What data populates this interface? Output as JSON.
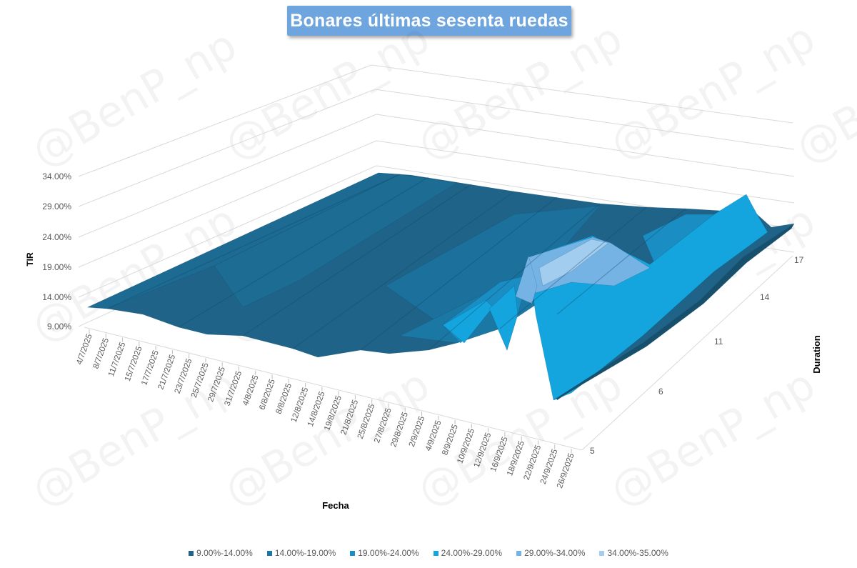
{
  "title": "Bonares últimas sesenta ruedas",
  "watermark_text": "@BenP_np",
  "chart_data": {
    "type": "surface",
    "title": "Bonares últimas sesenta ruedas",
    "xlabel": "Fecha",
    "ylabel": "TIR",
    "zlabel": "Duration",
    "y_ticks": [
      "9.00%",
      "14.00%",
      "19.00%",
      "24.00%",
      "29.00%",
      "34.00%"
    ],
    "ylim": [
      9,
      35
    ],
    "z_ticks": [
      "5",
      "6",
      "11",
      "14",
      "17"
    ],
    "x_ticks": [
      "4/7/2025",
      "8/7/2025",
      "11/7/2025",
      "15/7/2025",
      "17/7/2025",
      "21/7/2025",
      "23/7/2025",
      "25/7/2025",
      "29/7/2025",
      "31/7/2025",
      "4/8/2025",
      "6/8/2025",
      "8/8/2025",
      "12/8/2025",
      "14/8/2025",
      "19/8/2025",
      "21/8/2025",
      "25/8/2025",
      "27/8/2025",
      "29/8/2025",
      "2/9/2025",
      "4/9/2025",
      "8/9/2025",
      "10/9/2025",
      "12/9/2025",
      "16/9/2025",
      "18/9/2025",
      "22/9/2025",
      "24/9/2025",
      "26/9/2025"
    ],
    "legend": [
      {
        "label": "9.00%-14.00%",
        "color": "#1f6488"
      },
      {
        "label": "14.00%-19.00%",
        "color": "#1b77a4"
      },
      {
        "label": "19.00%-24.00%",
        "color": "#1a8dc2"
      },
      {
        "label": "24.00%-29.00%",
        "color": "#14a5de"
      },
      {
        "label": "29.00%-34.00%",
        "color": "#74b3e4"
      },
      {
        "label": "34.00%-35.00%",
        "color": "#a3cdee"
      }
    ],
    "legend_position": "bottom",
    "grid": true
  }
}
